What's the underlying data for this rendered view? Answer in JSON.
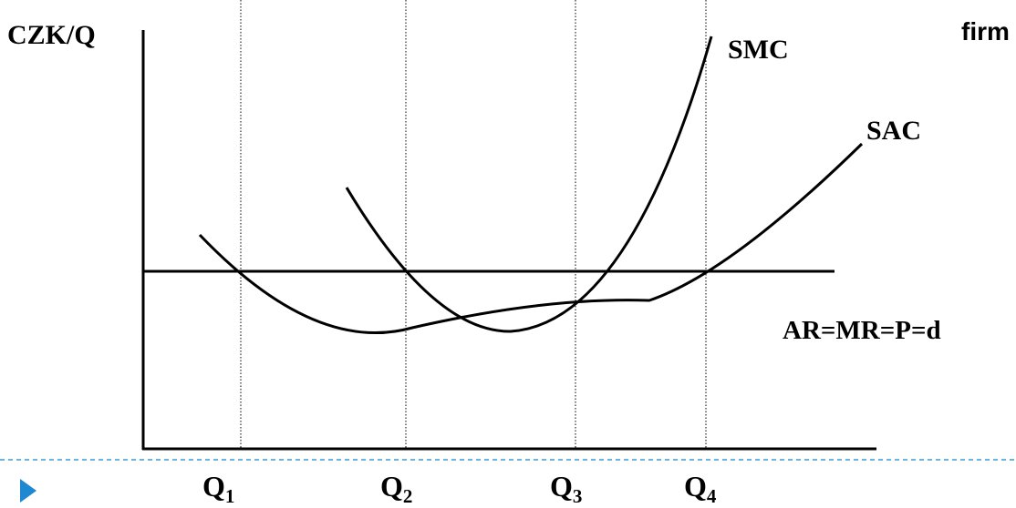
{
  "diagram": {
    "y_axis_label": "CZK/Q",
    "title_fragment": "firm",
    "curves": {
      "smc": "SMC",
      "sac": "SAC",
      "demand": "AR=MR=P=d"
    },
    "quantities": [
      {
        "base": "Q",
        "sub": "1"
      },
      {
        "base": "Q",
        "sub": "2"
      },
      {
        "base": "Q",
        "sub": "3"
      },
      {
        "base": "Q",
        "sub": "4"
      }
    ]
  },
  "colors": {
    "line": "#000000",
    "dotted_guides": "#000000",
    "dashed_separator": "#3a9bd5",
    "bullet": "#1e88d0",
    "background": "#ffffff"
  },
  "icons": {
    "bullet": "triangle-right-icon"
  }
}
